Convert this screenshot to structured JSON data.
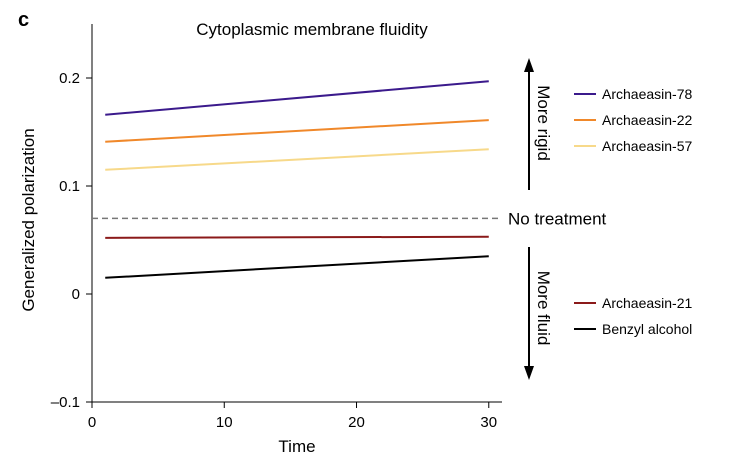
{
  "panel_letter": "c",
  "chart_data": {
    "type": "line",
    "title": "Cytoplasmic membrane fluidity",
    "xlabel": "Time",
    "ylabel": "Generalized polarization",
    "xlim": [
      0,
      31
    ],
    "ylim": [
      -0.1,
      0.25
    ],
    "xticks": [
      0,
      10,
      20,
      30
    ],
    "xtick_labels": [
      "0",
      "10",
      "20",
      "30"
    ],
    "yticks": [
      -0.1,
      0,
      0.1,
      0.2
    ],
    "ytick_labels": [
      "–0.1",
      "0",
      "0.1",
      "0.2"
    ],
    "grid": false,
    "legend_position": "right",
    "series": [
      {
        "name": "Archaeasin-78",
        "color": "#3b1a8c",
        "x": [
          1,
          30
        ],
        "y": [
          0.166,
          0.197
        ]
      },
      {
        "name": "Archaeasin-22",
        "color": "#f0882a",
        "x": [
          1,
          30
        ],
        "y": [
          0.141,
          0.161
        ]
      },
      {
        "name": "Archaeasin-57",
        "color": "#f7d98a",
        "x": [
          1,
          30
        ],
        "y": [
          0.115,
          0.134
        ]
      },
      {
        "name": "Archaeasin-21",
        "color": "#8b1a1a",
        "x": [
          1,
          30
        ],
        "y": [
          0.052,
          0.053
        ]
      },
      {
        "name": "Benzyl alcohol",
        "color": "#000000",
        "x": [
          1,
          30
        ],
        "y": [
          0.015,
          0.035
        ]
      }
    ],
    "reference_line": {
      "label": "No treatment",
      "y": 0.07,
      "style": "dashed",
      "color": "#777777"
    },
    "annotations": {
      "rigid": "More rigid",
      "fluid": "More fluid"
    }
  }
}
